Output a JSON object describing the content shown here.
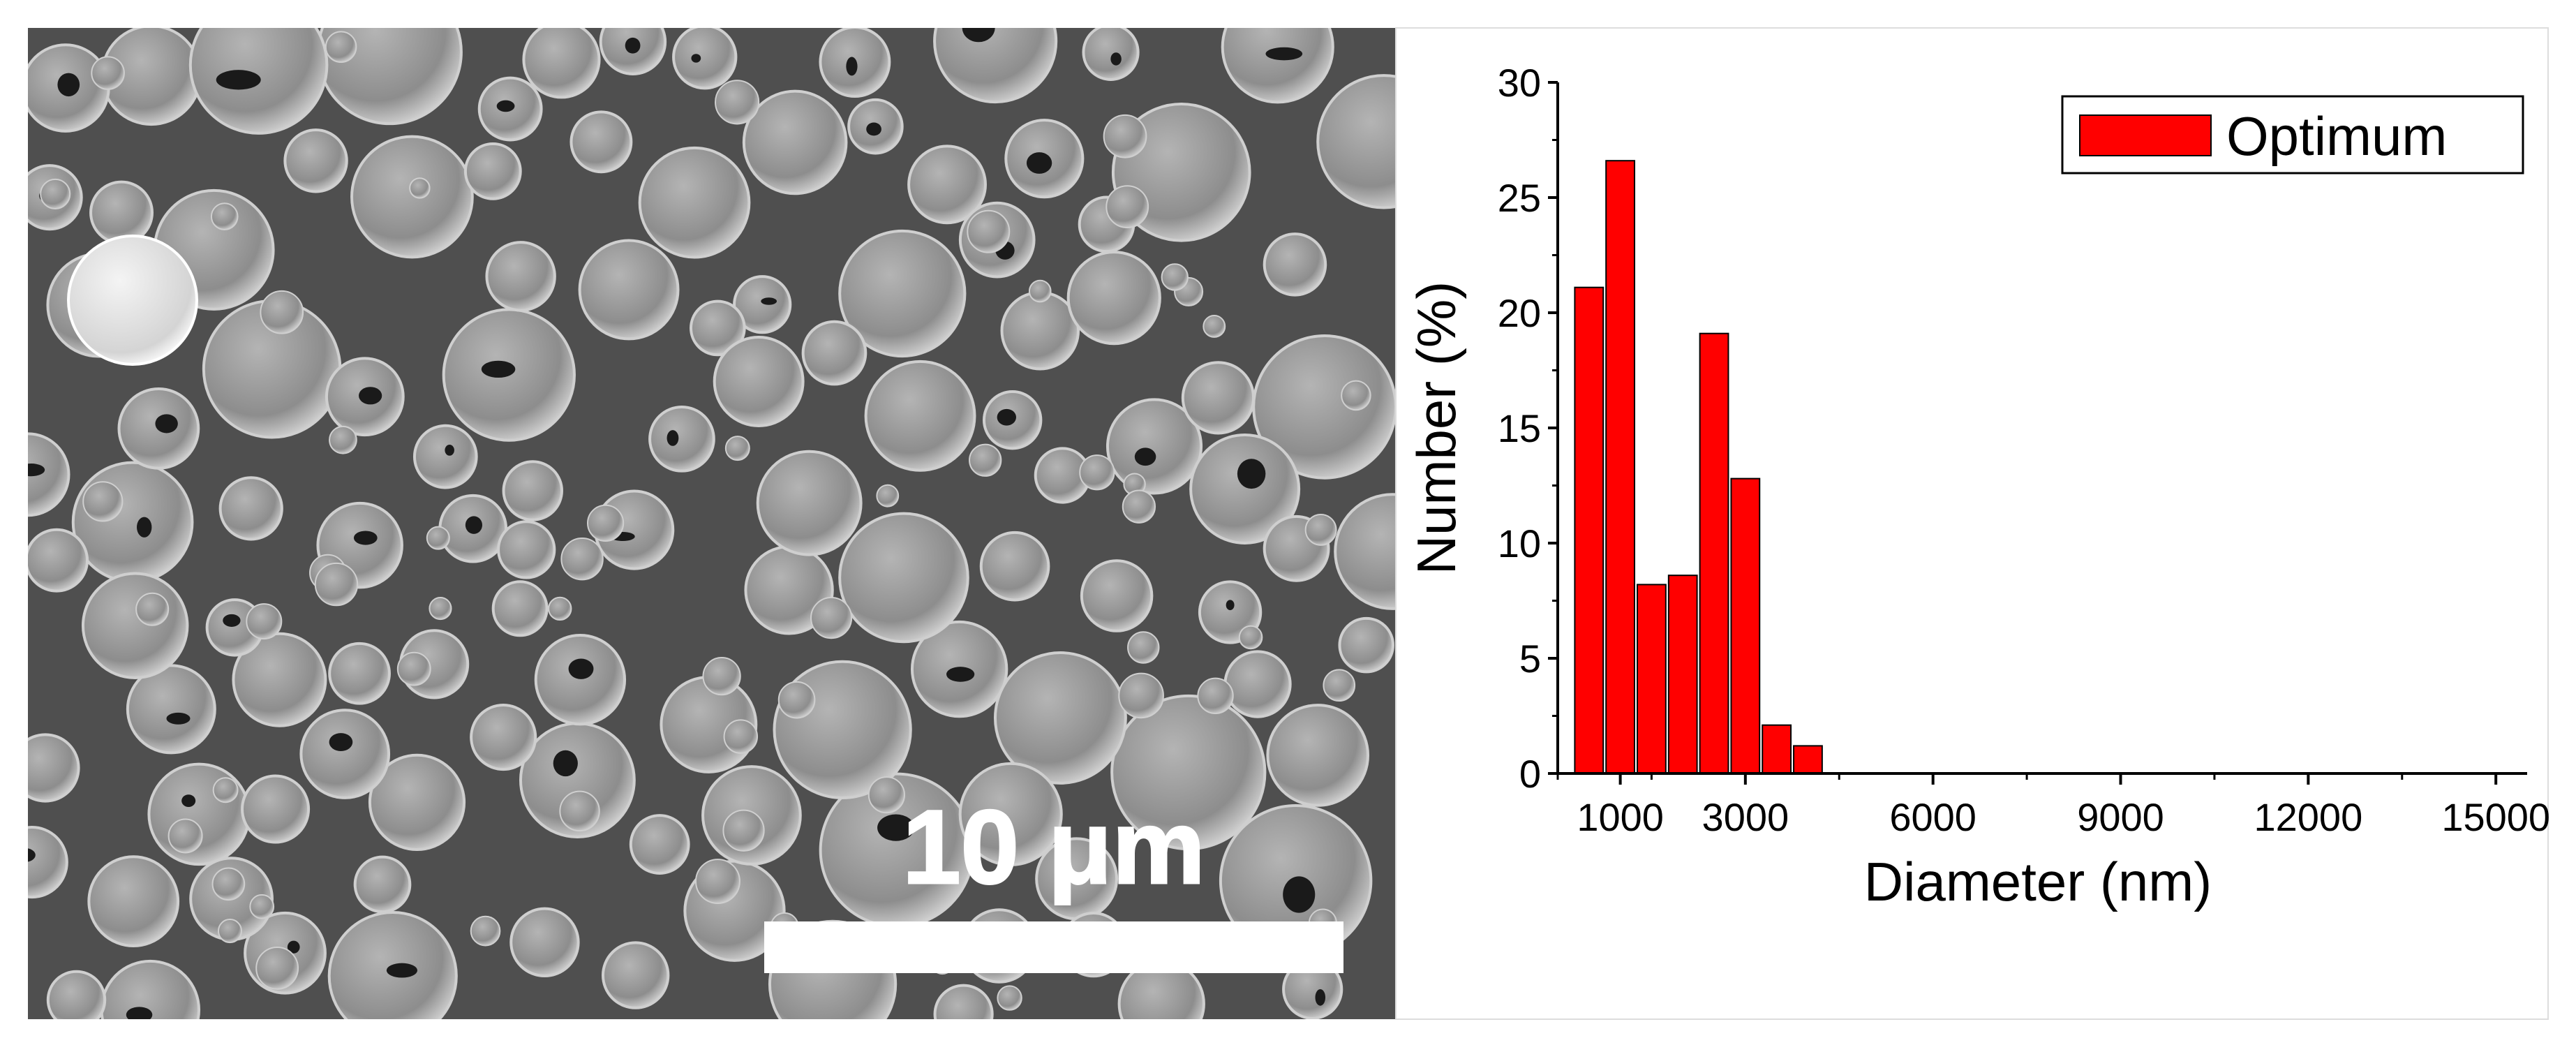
{
  "sem_panel": {
    "scale_bar_label": "10 μm"
  },
  "chart_data": {
    "type": "bar",
    "title": "",
    "xlabel": "Diameter (nm)",
    "ylabel": "Number (%)",
    "xlim": [
      0,
      15500
    ],
    "ylim": [
      0,
      30
    ],
    "xticks": [
      1000,
      3000,
      6000,
      9000,
      12000,
      15000
    ],
    "xtick_labels": [
      "1000",
      "3000",
      "6000",
      "9000",
      "12000",
      "15000"
    ],
    "yticks": [
      0,
      5,
      10,
      15,
      20,
      25,
      30
    ],
    "ytick_labels": [
      "0",
      "5",
      "10",
      "15",
      "20",
      "25",
      "30"
    ],
    "grid": false,
    "legend_position": "top-right",
    "bar_color": "#ff0000",
    "series": [
      {
        "name": "Optimum",
        "x": [
          500,
          1000,
          1500,
          2000,
          2500,
          3000,
          3500,
          4000
        ],
        "values": [
          21.1,
          26.6,
          8.2,
          8.6,
          19.1,
          12.8,
          2.1,
          1.2
        ]
      }
    ],
    "bin_width": 500
  }
}
